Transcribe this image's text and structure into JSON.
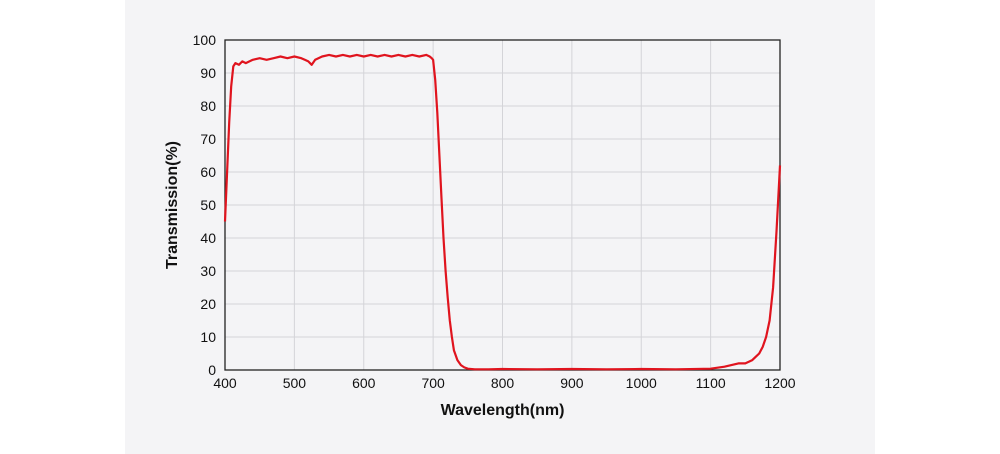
{
  "chart_data": {
    "type": "line",
    "title": "",
    "xlabel": "Wavelength(nm)",
    "ylabel": "Transmission(%)",
    "xlim": [
      400,
      1200
    ],
    "ylim": [
      0,
      100
    ],
    "xticks": [
      400,
      500,
      600,
      700,
      800,
      900,
      1000,
      1100,
      1200
    ],
    "yticks": [
      0,
      10,
      20,
      30,
      40,
      50,
      60,
      70,
      80,
      90,
      100
    ],
    "grid": true,
    "legend": "none",
    "series": [
      {
        "color": "#e0141e",
        "x": [
          400,
          403,
          406,
          409,
          412,
          415,
          420,
          425,
          430,
          440,
          450,
          460,
          470,
          480,
          490,
          500,
          510,
          515,
          520,
          525,
          530,
          540,
          550,
          560,
          570,
          580,
          590,
          600,
          610,
          620,
          630,
          640,
          650,
          660,
          670,
          680,
          690,
          695,
          698,
          700,
          703,
          706,
          709,
          712,
          715,
          718,
          721,
          724,
          727,
          730,
          735,
          740,
          745,
          750,
          760,
          780,
          800,
          850,
          900,
          950,
          1000,
          1050,
          1100,
          1120,
          1130,
          1140,
          1150,
          1155,
          1160,
          1165,
          1170,
          1175,
          1180,
          1185,
          1190,
          1195,
          1200
        ],
        "y": [
          45,
          60,
          75,
          86,
          92,
          93,
          92.5,
          93.5,
          93,
          94,
          94.5,
          94,
          94.5,
          95,
          94.5,
          95,
          94.5,
          94,
          93.5,
          92.5,
          94,
          95,
          95.5,
          95,
          95.5,
          95,
          95.5,
          95,
          95.5,
          95,
          95.5,
          95,
          95.5,
          95,
          95.5,
          95,
          95.5,
          95,
          94.5,
          94,
          88,
          78,
          65,
          52,
          40,
          30,
          22,
          15,
          10,
          6,
          3,
          1.5,
          0.8,
          0.4,
          0.2,
          0.2,
          0.3,
          0.2,
          0.3,
          0.2,
          0.3,
          0.2,
          0.4,
          1,
          1.5,
          2,
          2,
          2.5,
          3,
          4,
          5,
          7,
          10,
          15,
          25,
          42,
          62
        ]
      }
    ]
  }
}
